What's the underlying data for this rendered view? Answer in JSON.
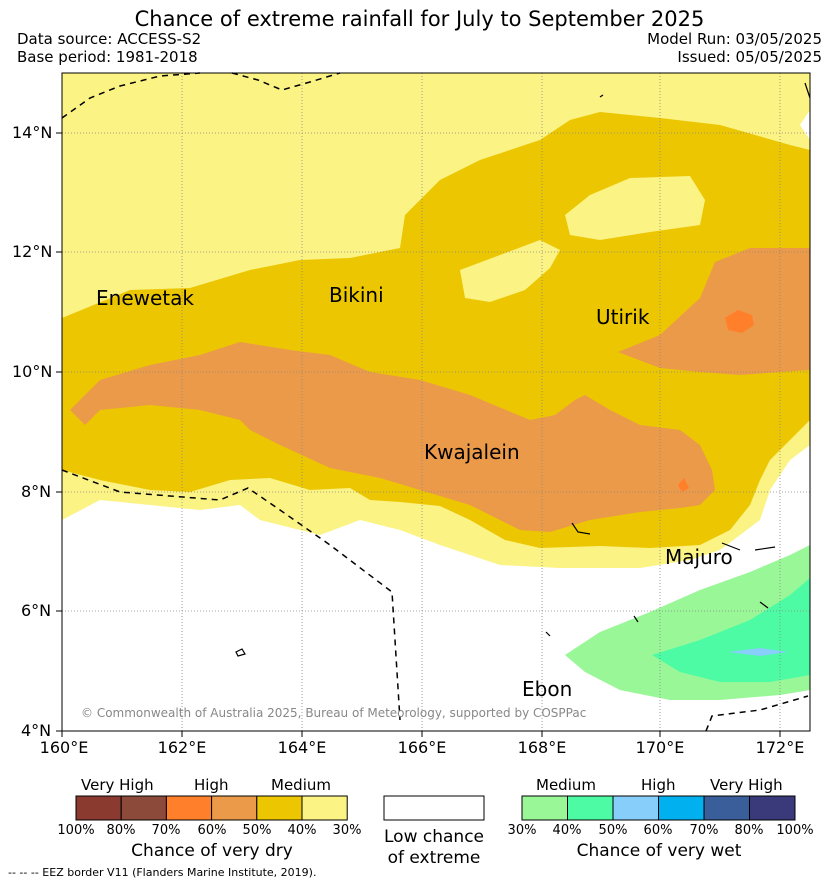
{
  "header": {
    "title": "Chance of extreme rainfall for July to September 2025",
    "data_source": "Data source: ACCESS-S2",
    "base_period": "Base period: 1981-2018",
    "model_run": "Model Run: 03/05/2025",
    "issued": "Issued: 05/05/2025"
  },
  "map": {
    "lon_labels": [
      "160°E",
      "162°E",
      "164°E",
      "166°E",
      "168°E",
      "170°E",
      "172°E"
    ],
    "lat_labels": [
      "4°N",
      "6°N",
      "8°N",
      "10°N",
      "12°N",
      "14°N"
    ],
    "places": {
      "enewetak": "Enewetak",
      "bikini": "Bikini",
      "utirik": "Utirik",
      "kwajalein": "Kwajalein",
      "majuro": "Majuro",
      "ebon": "Ebon"
    },
    "copyright": "© Commonwealth of Australia 2025, Bureau of Meteorology, supported by COSPPac"
  },
  "legend": {
    "dry": {
      "headers": [
        "Very High",
        "High",
        "Medium"
      ],
      "colors": [
        "#8b3a2f",
        "#8b4a3a",
        "#ff7f2a",
        "#eb9a4a",
        "#ecc600",
        "#fbf384"
      ],
      "ticks": [
        "100%",
        "80%",
        "70%",
        "60%",
        "50%",
        "40%",
        "30%"
      ],
      "caption": "Chance of very dry"
    },
    "low": {
      "color": "#ffffff",
      "caption_1": "Low chance",
      "caption_2": "of extreme"
    },
    "wet": {
      "headers": [
        "Medium",
        "High",
        "Very High"
      ],
      "colors": [
        "#99f797",
        "#4dfba4",
        "#87cefa",
        "#00b0ef",
        "#3a5e9a",
        "#3a3a7a"
      ],
      "ticks": [
        "30%",
        "40%",
        "50%",
        "60%",
        "70%",
        "80%",
        "100%"
      ],
      "caption": "Chance of very wet"
    }
  },
  "footnote": "--  --  -- EEZ border V11 (Flanders Marine Institute, 2019)."
}
